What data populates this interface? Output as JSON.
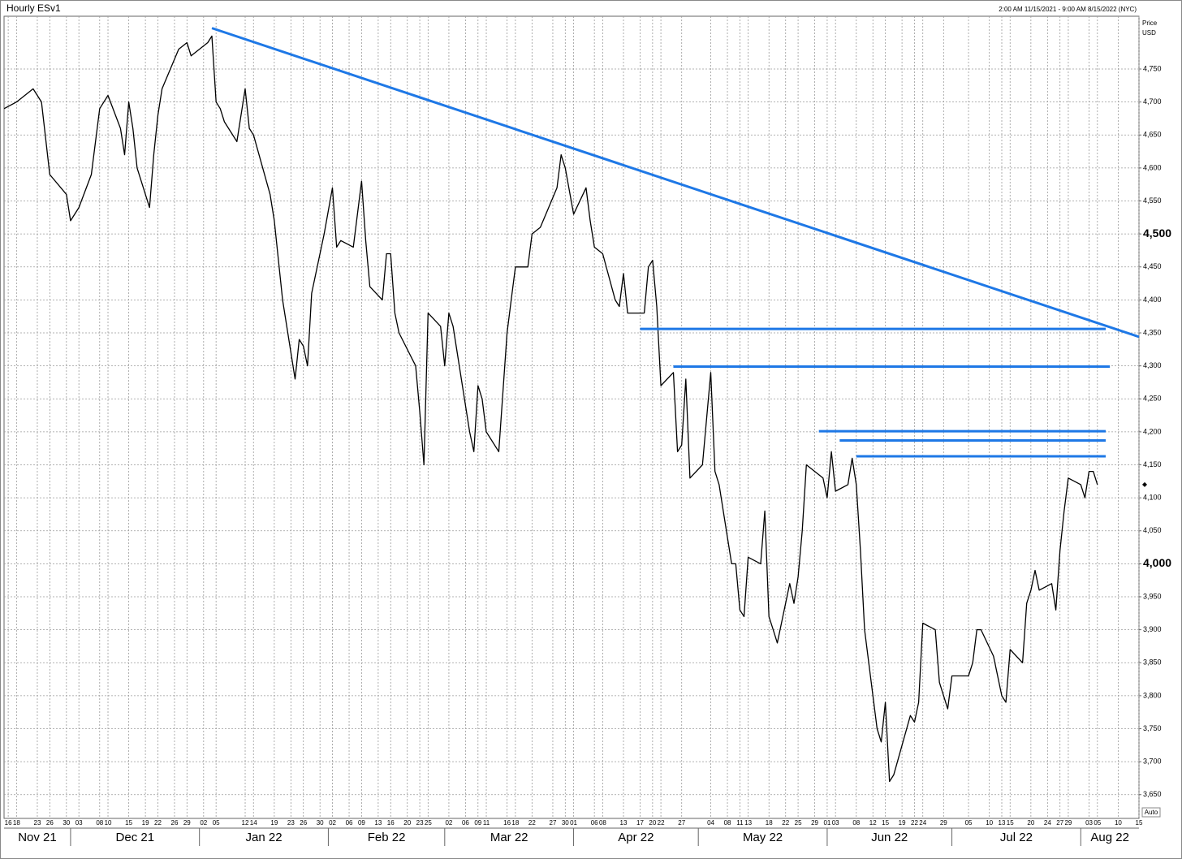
{
  "chart_data": {
    "type": "line",
    "title": "Hourly ESv1",
    "subtitle": "2:00 AM 11/15/2021 - 9:00 AM 8/15/2022 (NYC)",
    "ylabel": "Price",
    "yunit": "USD",
    "scale_label": "Auto",
    "xlim": [
      "2021-11-15",
      "2022-08-15"
    ],
    "ylim": [
      3614,
      4830
    ],
    "grid": true,
    "yticks": [
      {
        "value": 3650,
        "label": "3,650"
      },
      {
        "value": 3700,
        "label": "3,700"
      },
      {
        "value": 3750,
        "label": "3,750"
      },
      {
        "value": 3800,
        "label": "3,800"
      },
      {
        "value": 3850,
        "label": "3,850"
      },
      {
        "value": 3900,
        "label": "3,900"
      },
      {
        "value": 3950,
        "label": "3,950"
      },
      {
        "value": 4000,
        "label": "4,000",
        "bold": true
      },
      {
        "value": 4050,
        "label": "4,050"
      },
      {
        "value": 4100,
        "label": "4,100"
      },
      {
        "value": 4150,
        "label": "4,150"
      },
      {
        "value": 4200,
        "label": "4,200"
      },
      {
        "value": 4250,
        "label": "4,250"
      },
      {
        "value": 4300,
        "label": "4,300"
      },
      {
        "value": 4350,
        "label": "4,350"
      },
      {
        "value": 4400,
        "label": "4,400"
      },
      {
        "value": 4450,
        "label": "4,450"
      },
      {
        "value": 4500,
        "label": "4,500",
        "bold": true
      },
      {
        "value": 4550,
        "label": "4,550"
      },
      {
        "value": 4600,
        "label": "4,600"
      },
      {
        "value": 4650,
        "label": "4,650"
      },
      {
        "value": 4700,
        "label": "4,700"
      },
      {
        "value": 4750,
        "label": "4,750"
      }
    ],
    "xticks": [
      {
        "value": "2021-11-16",
        "label": "16"
      },
      {
        "value": "2021-11-18",
        "label": "18"
      },
      {
        "value": "2021-11-23",
        "label": "23"
      },
      {
        "value": "2021-11-26",
        "label": "26"
      },
      {
        "value": "2021-11-30",
        "label": "30"
      },
      {
        "value": "2021-12-03",
        "label": "03"
      },
      {
        "value": "2021-12-08",
        "label": "08"
      },
      {
        "value": "2021-12-10",
        "label": "10"
      },
      {
        "value": "2021-12-15",
        "label": "15"
      },
      {
        "value": "2021-12-19",
        "label": "19"
      },
      {
        "value": "2021-12-22",
        "label": "22"
      },
      {
        "value": "2021-12-26",
        "label": "26"
      },
      {
        "value": "2021-12-29",
        "label": "29"
      },
      {
        "value": "2022-01-02",
        "label": "02"
      },
      {
        "value": "2022-01-05",
        "label": "05"
      },
      {
        "value": "2022-01-12",
        "label": "12"
      },
      {
        "value": "2022-01-14",
        "label": "14"
      },
      {
        "value": "2022-01-19",
        "label": "19"
      },
      {
        "value": "2022-01-23",
        "label": "23"
      },
      {
        "value": "2022-01-26",
        "label": "26"
      },
      {
        "value": "2022-01-30",
        "label": "30"
      },
      {
        "value": "2022-02-02",
        "label": "02"
      },
      {
        "value": "2022-02-06",
        "label": "06"
      },
      {
        "value": "2022-02-09",
        "label": "09"
      },
      {
        "value": "2022-02-13",
        "label": "13"
      },
      {
        "value": "2022-02-16",
        "label": "16"
      },
      {
        "value": "2022-02-20",
        "label": "20"
      },
      {
        "value": "2022-02-23",
        "label": "23"
      },
      {
        "value": "2022-02-25",
        "label": "25"
      },
      {
        "value": "2022-03-02",
        "label": "02"
      },
      {
        "value": "2022-03-06",
        "label": "06"
      },
      {
        "value": "2022-03-09",
        "label": "09"
      },
      {
        "value": "2022-03-11",
        "label": "11"
      },
      {
        "value": "2022-03-16",
        "label": "16"
      },
      {
        "value": "2022-03-18",
        "label": "18"
      },
      {
        "value": "2022-03-22",
        "label": "22"
      },
      {
        "value": "2022-03-27",
        "label": "27"
      },
      {
        "value": "2022-03-30",
        "label": "30"
      },
      {
        "value": "2022-04-01",
        "label": "01"
      },
      {
        "value": "2022-04-06",
        "label": "06"
      },
      {
        "value": "2022-04-08",
        "label": "08"
      },
      {
        "value": "2022-04-13",
        "label": "13"
      },
      {
        "value": "2022-04-17",
        "label": "17"
      },
      {
        "value": "2022-04-20",
        "label": "20"
      },
      {
        "value": "2022-04-22",
        "label": "22"
      },
      {
        "value": "2022-04-27",
        "label": "27"
      },
      {
        "value": "2022-05-04",
        "label": "04"
      },
      {
        "value": "2022-05-08",
        "label": "08"
      },
      {
        "value": "2022-05-11",
        "label": "11"
      },
      {
        "value": "2022-05-13",
        "label": "13"
      },
      {
        "value": "2022-05-18",
        "label": "18"
      },
      {
        "value": "2022-05-22",
        "label": "22"
      },
      {
        "value": "2022-05-25",
        "label": "25"
      },
      {
        "value": "2022-05-29",
        "label": "29"
      },
      {
        "value": "2022-06-01",
        "label": "01"
      },
      {
        "value": "2022-06-03",
        "label": "03"
      },
      {
        "value": "2022-06-08",
        "label": "08"
      },
      {
        "value": "2022-06-12",
        "label": "12"
      },
      {
        "value": "2022-06-15",
        "label": "15"
      },
      {
        "value": "2022-06-19",
        "label": "19"
      },
      {
        "value": "2022-06-22",
        "label": "22"
      },
      {
        "value": "2022-06-24",
        "label": "24"
      },
      {
        "value": "2022-06-29",
        "label": "29"
      },
      {
        "value": "2022-07-05",
        "label": "05"
      },
      {
        "value": "2022-07-10",
        "label": "10"
      },
      {
        "value": "2022-07-13",
        "label": "13"
      },
      {
        "value": "2022-07-15",
        "label": "15"
      },
      {
        "value": "2022-07-20",
        "label": "20"
      },
      {
        "value": "2022-07-24",
        "label": "24"
      },
      {
        "value": "2022-07-27",
        "label": "27"
      },
      {
        "value": "2022-07-29",
        "label": "29"
      },
      {
        "value": "2022-08-03",
        "label": "03"
      },
      {
        "value": "2022-08-05",
        "label": "05"
      },
      {
        "value": "2022-08-10",
        "label": "10"
      },
      {
        "value": "2022-08-15",
        "label": "15"
      }
    ],
    "months": [
      {
        "value": "2021-11",
        "label": "Nov 21"
      },
      {
        "value": "2021-12",
        "label": "Dec 21"
      },
      {
        "value": "2022-01",
        "label": "Jan 22"
      },
      {
        "value": "2022-02",
        "label": "Feb 22"
      },
      {
        "value": "2022-03",
        "label": "Mar 22"
      },
      {
        "value": "2022-04",
        "label": "Apr 22"
      },
      {
        "value": "2022-05",
        "label": "May 22"
      },
      {
        "value": "2022-06",
        "label": "Jun 22"
      },
      {
        "value": "2022-07",
        "label": "Jul 22"
      },
      {
        "value": "2022-08",
        "label": "Aug 22"
      }
    ],
    "series": [
      {
        "name": "ESv1",
        "color": "#000000",
        "x": [
          "2021-11-15",
          "2021-11-18",
          "2021-11-22",
          "2021-11-24",
          "2021-11-26",
          "2021-11-30",
          "2021-12-01",
          "2021-12-03",
          "2021-12-06",
          "2021-12-08",
          "2021-12-10",
          "2021-12-13",
          "2021-12-14",
          "2021-12-15",
          "2021-12-16",
          "2021-12-17",
          "2021-12-20",
          "2021-12-21",
          "2021-12-22",
          "2021-12-23",
          "2021-12-27",
          "2021-12-29",
          "2021-12-30",
          "2022-01-03",
          "2022-01-04",
          "2022-01-05",
          "2022-01-06",
          "2022-01-07",
          "2022-01-10",
          "2022-01-12",
          "2022-01-13",
          "2022-01-14",
          "2022-01-18",
          "2022-01-19",
          "2022-01-21",
          "2022-01-24",
          "2022-01-25",
          "2022-01-26",
          "2022-01-27",
          "2022-01-28",
          "2022-01-31",
          "2022-02-02",
          "2022-02-03",
          "2022-02-04",
          "2022-02-07",
          "2022-02-09",
          "2022-02-10",
          "2022-02-11",
          "2022-02-14",
          "2022-02-15",
          "2022-02-16",
          "2022-02-17",
          "2022-02-18",
          "2022-02-22",
          "2022-02-23",
          "2022-02-24",
          "2022-02-25",
          "2022-02-28",
          "2022-03-01",
          "2022-03-02",
          "2022-03-03",
          "2022-03-04",
          "2022-03-07",
          "2022-03-08",
          "2022-03-09",
          "2022-03-10",
          "2022-03-11",
          "2022-03-14",
          "2022-03-15",
          "2022-03-16",
          "2022-03-17",
          "2022-03-18",
          "2022-03-21",
          "2022-03-22",
          "2022-03-24",
          "2022-03-28",
          "2022-03-29",
          "2022-03-30",
          "2022-04-01",
          "2022-04-04",
          "2022-04-05",
          "2022-04-06",
          "2022-04-08",
          "2022-04-11",
          "2022-04-12",
          "2022-04-13",
          "2022-04-14",
          "2022-04-18",
          "2022-04-19",
          "2022-04-20",
          "2022-04-21",
          "2022-04-22",
          "2022-04-25",
          "2022-04-26",
          "2022-04-27",
          "2022-04-28",
          "2022-04-29",
          "2022-05-02",
          "2022-05-04",
          "2022-05-05",
          "2022-05-06",
          "2022-05-09",
          "2022-05-10",
          "2022-05-11",
          "2022-05-12",
          "2022-05-13",
          "2022-05-16",
          "2022-05-17",
          "2022-05-18",
          "2022-05-19",
          "2022-05-20",
          "2022-05-23",
          "2022-05-24",
          "2022-05-25",
          "2022-05-26",
          "2022-05-27",
          "2022-05-31",
          "2022-06-01",
          "2022-06-02",
          "2022-06-03",
          "2022-06-06",
          "2022-06-07",
          "2022-06-08",
          "2022-06-09",
          "2022-06-10",
          "2022-06-13",
          "2022-06-14",
          "2022-06-15",
          "2022-06-16",
          "2022-06-17",
          "2022-06-21",
          "2022-06-22",
          "2022-06-23",
          "2022-06-24",
          "2022-06-27",
          "2022-06-28",
          "2022-06-30",
          "2022-07-01",
          "2022-07-05",
          "2022-07-06",
          "2022-07-07",
          "2022-07-08",
          "2022-07-11",
          "2022-07-13",
          "2022-07-14",
          "2022-07-15",
          "2022-07-18",
          "2022-07-19",
          "2022-07-20",
          "2022-07-21",
          "2022-07-22",
          "2022-07-25",
          "2022-07-26",
          "2022-07-27",
          "2022-07-28",
          "2022-07-29",
          "2022-08-01",
          "2022-08-02",
          "2022-08-03",
          "2022-08-04",
          "2022-08-05"
        ],
        "values": [
          4690,
          4700,
          4720,
          4700,
          4590,
          4560,
          4520,
          4540,
          4590,
          4690,
          4710,
          4660,
          4620,
          4700,
          4660,
          4600,
          4540,
          4620,
          4680,
          4720,
          4780,
          4790,
          4770,
          4790,
          4800,
          4700,
          4690,
          4670,
          4640,
          4720,
          4660,
          4650,
          4560,
          4520,
          4400,
          4280,
          4340,
          4330,
          4300,
          4410,
          4500,
          4570,
          4480,
          4490,
          4480,
          4580,
          4490,
          4420,
          4400,
          4470,
          4470,
          4380,
          4350,
          4300,
          4230,
          4150,
          4380,
          4360,
          4300,
          4380,
          4360,
          4320,
          4200,
          4170,
          4270,
          4250,
          4200,
          4170,
          4260,
          4350,
          4400,
          4450,
          4450,
          4500,
          4510,
          4570,
          4620,
          4600,
          4530,
          4570,
          4520,
          4480,
          4470,
          4400,
          4390,
          4440,
          4380,
          4380,
          4450,
          4460,
          4390,
          4270,
          4290,
          4170,
          4180,
          4280,
          4130,
          4150,
          4290,
          4140,
          4120,
          4000,
          4000,
          3930,
          3920,
          4010,
          4000,
          4080,
          3920,
          3900,
          3880,
          3970,
          3940,
          3980,
          4050,
          4150,
          4130,
          4100,
          4170,
          4110,
          4120,
          4160,
          4120,
          4020,
          3900,
          3750,
          3730,
          3790,
          3670,
          3680,
          3770,
          3760,
          3790,
          3910,
          3900,
          3820,
          3780,
          3830,
          3830,
          3850,
          3900,
          3900,
          3860,
          3800,
          3790,
          3870,
          3850,
          3940,
          3960,
          3990,
          3960,
          3970,
          3930,
          4020,
          4080,
          4130,
          4120,
          4100,
          4140,
          4140,
          4120
        ]
      }
    ],
    "trendline_color": "#1e78e6",
    "trendlines": [
      {
        "x": [
          "2022-01-04",
          "2022-08-15"
        ],
        "y": [
          4812,
          4344
        ]
      },
      {
        "x": [
          "2022-04-17",
          "2022-08-07"
        ],
        "y": [
          4356,
          4356
        ]
      },
      {
        "x": [
          "2022-04-25",
          "2022-08-08"
        ],
        "y": [
          4299,
          4299
        ]
      },
      {
        "x": [
          "2022-05-30",
          "2022-08-07"
        ],
        "y": [
          4201,
          4201
        ]
      },
      {
        "x": [
          "2022-06-04",
          "2022-08-07"
        ],
        "y": [
          4187,
          4187
        ]
      },
      {
        "x": [
          "2022-06-08",
          "2022-08-07"
        ],
        "y": [
          4163,
          4163
        ]
      }
    ],
    "last_price": 4120
  }
}
